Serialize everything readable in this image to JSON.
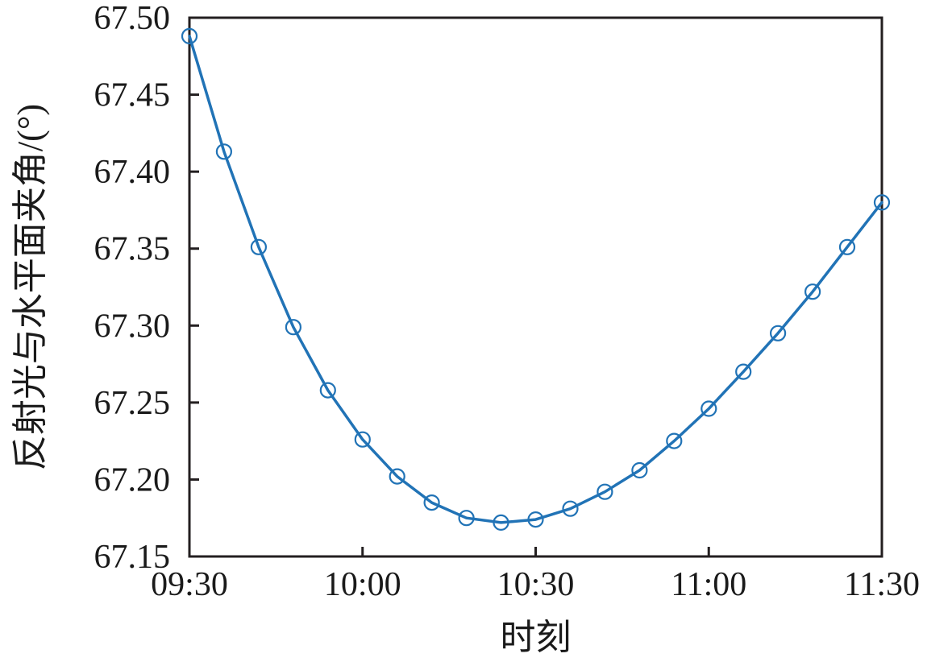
{
  "figure": {
    "background_color": "#ffffff",
    "text_color": "#1a1a1a",
    "axis_color": "#231f20",
    "series_color": "#2173b6"
  },
  "chart_data": {
    "type": "line",
    "title": "",
    "xlabel": "时刻",
    "ylabel": "反射光与水平面夹角/(°)",
    "grid": false,
    "legend": "none",
    "marker_style": "open-circle",
    "x_tick_labels": [
      "09:30",
      "10:00",
      "10:30",
      "11:00",
      "11:30"
    ],
    "y_tick_labels": [
      "67.15",
      "67.20",
      "67.25",
      "67.30",
      "67.35",
      "67.40",
      "67.45",
      "67.50"
    ],
    "ylim": [
      67.15,
      67.5
    ],
    "xlim": [
      "09:30",
      "11:30"
    ],
    "series": [
      {
        "name": "反射光与水平面夹角",
        "color": "#2173b6",
        "x": [
          "09:30",
          "09:36",
          "09:42",
          "09:48",
          "09:54",
          "10:00",
          "10:06",
          "10:12",
          "10:18",
          "10:24",
          "10:30",
          "10:36",
          "10:42",
          "10:48",
          "10:54",
          "11:00",
          "11:06",
          "11:12",
          "11:18",
          "11:24",
          "11:30"
        ],
        "y": [
          67.488,
          67.413,
          67.351,
          67.299,
          67.258,
          67.226,
          67.202,
          67.185,
          67.175,
          67.172,
          67.174,
          67.181,
          67.192,
          67.206,
          67.225,
          67.246,
          67.27,
          67.295,
          67.322,
          67.351,
          67.38
        ]
      }
    ]
  }
}
